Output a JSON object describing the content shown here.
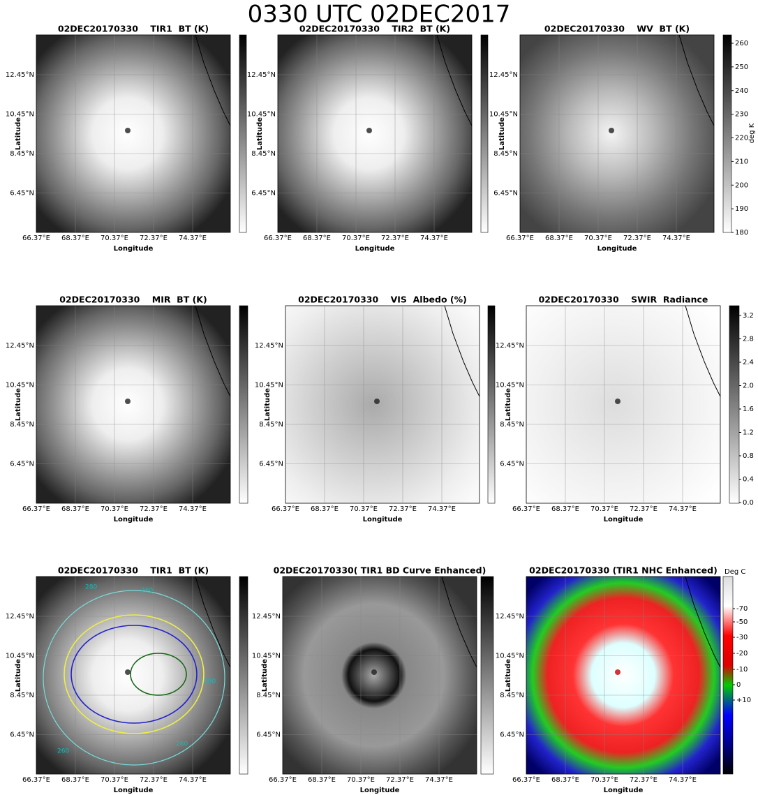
{
  "title": "0330 UTC 02DEC2017",
  "x_label": "Longitude",
  "y_label": "Latitude",
  "longitude_ticks": [
    "66.37°E",
    "68.37°E",
    "70.37°E",
    "72.37°E",
    "74.37°E"
  ],
  "latitude_ticks": [
    "12.45°N",
    "10.45°N",
    "8.45°N",
    "6.45°N"
  ],
  "panels": [
    {
      "title": "02DEC20170330    TIR1  BT (K)"
    },
    {
      "title": "02DEC20170330    TIR2  BT (K)"
    },
    {
      "title": "02DEC20170330    WV  BT (K)"
    },
    {
      "title": "02DEC20170330    MIR  BT (K)"
    },
    {
      "title": "02DEC20170330    VIS  Albedo (%)"
    },
    {
      "title": "02DEC20170330    SWIR  Radiance"
    },
    {
      "title": "02DEC20170330    TIR1  BT (K)"
    },
    {
      "title": "02DEC20170330( TIR1 BD Curve Enhanced)"
    },
    {
      "title": "02DEC20170330 (TIR1 NHC Enhanced)"
    }
  ],
  "contour_labels": [
    "280",
    "260"
  ],
  "colorbars": [
    {
      "panel": 3,
      "label": "deg K",
      "ticks": [
        "260",
        "250",
        "240",
        "230",
        "220",
        "210",
        "200",
        "190",
        "180"
      ]
    },
    {
      "panel": 6,
      "ticks": [
        "3.2",
        "2.8",
        "2.4",
        "2.0",
        "1.6",
        "1.2",
        "0.8",
        "0.4",
        "0.0"
      ]
    },
    {
      "panel": 9,
      "label": "Deg C",
      "ticks": [
        "-70",
        "-50",
        "-30",
        "-20",
        "-10",
        "0",
        "+10"
      ]
    }
  ]
}
